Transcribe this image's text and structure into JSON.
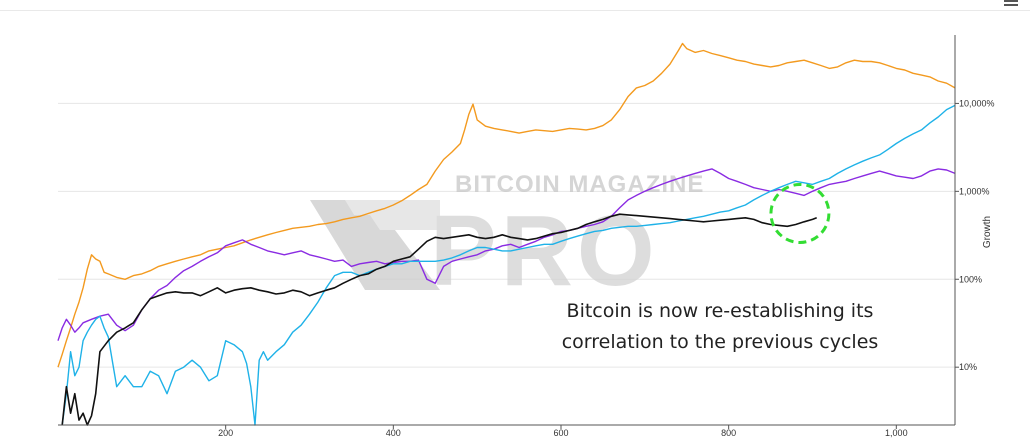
{
  "chart_data": {
    "type": "line",
    "title": "",
    "xlabel": "",
    "ylabel": "Growth",
    "yscale": "log",
    "xlim": [
      0,
      1070
    ],
    "ylim": [
      2.2,
      60000
    ],
    "x_ticks": [
      200,
      400,
      600,
      800,
      1000
    ],
    "x_tick_labels": [
      "200",
      "400",
      "600",
      "800",
      "1,000"
    ],
    "y_ticks": [
      10,
      100,
      1000,
      10000
    ],
    "y_tick_labels": [
      "10%",
      "100%",
      "1,000%",
      "10,000%"
    ],
    "grid": "horizontal",
    "legend": "none",
    "annotation": {
      "line1": "Bitcoin is now re-establishing its",
      "line2": "correlation to the previous cycles"
    },
    "highlight_circle": {
      "center_x": 885,
      "center_y": 560,
      "color": "#33dd33"
    },
    "watermark": {
      "top": "BITCOIN MAGAZINE",
      "main": "PRO"
    },
    "series": [
      {
        "color": "#f39a1f",
        "x": [
          0,
          5,
          10,
          15,
          20,
          25,
          30,
          35,
          40,
          45,
          50,
          55,
          60,
          70,
          80,
          90,
          100,
          110,
          120,
          130,
          140,
          150,
          160,
          170,
          180,
          190,
          200,
          210,
          220,
          230,
          240,
          250,
          260,
          270,
          280,
          290,
          300,
          310,
          320,
          330,
          340,
          350,
          360,
          370,
          380,
          390,
          400,
          410,
          420,
          430,
          440,
          450,
          460,
          470,
          480,
          485,
          490,
          495,
          500,
          510,
          520,
          530,
          540,
          550,
          560,
          570,
          580,
          590,
          600,
          610,
          620,
          630,
          640,
          650,
          660,
          670,
          680,
          690,
          700,
          710,
          720,
          730,
          740,
          745,
          750,
          760,
          770,
          780,
          790,
          800,
          810,
          820,
          830,
          840,
          850,
          860,
          870,
          880,
          890,
          900,
          910,
          920,
          930,
          940,
          950,
          960,
          970,
          980,
          990,
          1000,
          1010,
          1020,
          1030,
          1040,
          1050,
          1060,
          1070
        ],
        "y": [
          10,
          14,
          20,
          28,
          40,
          55,
          80,
          130,
          190,
          170,
          160,
          120,
          115,
          105,
          100,
          110,
          115,
          125,
          140,
          150,
          160,
          170,
          180,
          190,
          210,
          220,
          230,
          240,
          260,
          280,
          300,
          320,
          340,
          360,
          380,
          390,
          400,
          420,
          430,
          450,
          480,
          500,
          520,
          560,
          600,
          640,
          700,
          780,
          900,
          1050,
          1200,
          1700,
          2300,
          2800,
          3500,
          5000,
          7500,
          9800,
          6500,
          5500,
          5200,
          5000,
          4800,
          4600,
          4800,
          5000,
          4900,
          4800,
          5000,
          5200,
          5100,
          5000,
          5200,
          5600,
          6500,
          8500,
          12000,
          15000,
          16000,
          18000,
          22000,
          28000,
          40000,
          48000,
          42000,
          38000,
          40000,
          37000,
          35000,
          33000,
          31000,
          30000,
          28000,
          27000,
          26000,
          27000,
          29000,
          30000,
          31000,
          29000,
          27000,
          25000,
          26000,
          29000,
          31000,
          30000,
          30000,
          29000,
          27000,
          25000,
          24000,
          22000,
          21000,
          20000,
          18000,
          17000,
          15000
        ]
      },
      {
        "color": "#8a2be2",
        "x": [
          0,
          5,
          10,
          15,
          20,
          25,
          30,
          40,
          50,
          60,
          70,
          80,
          90,
          100,
          110,
          120,
          130,
          140,
          150,
          160,
          170,
          180,
          190,
          200,
          210,
          220,
          230,
          240,
          250,
          260,
          270,
          280,
          290,
          300,
          310,
          320,
          330,
          340,
          350,
          360,
          370,
          380,
          390,
          400,
          410,
          420,
          430,
          440,
          450,
          460,
          470,
          480,
          490,
          500,
          510,
          520,
          530,
          540,
          550,
          560,
          570,
          580,
          590,
          600,
          610,
          620,
          630,
          640,
          650,
          660,
          670,
          680,
          690,
          700,
          710,
          720,
          730,
          740,
          750,
          760,
          770,
          780,
          790,
          800,
          810,
          820,
          830,
          840,
          850,
          860,
          870,
          880,
          890,
          900,
          910,
          920,
          930,
          940,
          950,
          960,
          970,
          980,
          990,
          1000,
          1010,
          1020,
          1030,
          1040,
          1050,
          1060,
          1070
        ],
        "y": [
          20,
          28,
          35,
          30,
          25,
          28,
          32,
          35,
          38,
          40,
          30,
          26,
          30,
          45,
          60,
          75,
          85,
          105,
          125,
          140,
          160,
          180,
          200,
          240,
          260,
          280,
          250,
          230,
          210,
          200,
          190,
          200,
          210,
          190,
          180,
          170,
          160,
          165,
          140,
          150,
          155,
          160,
          150,
          155,
          160,
          160,
          165,
          100,
          90,
          140,
          160,
          170,
          180,
          190,
          210,
          220,
          240,
          250,
          230,
          250,
          270,
          300,
          320,
          350,
          360,
          380,
          400,
          420,
          450,
          520,
          650,
          800,
          900,
          1000,
          1100,
          1200,
          1300,
          1400,
          1500,
          1600,
          1700,
          1800,
          1600,
          1400,
          1300,
          1200,
          1100,
          1050,
          1000,
          1050,
          1000,
          950,
          900,
          1000,
          1100,
          1200,
          1250,
          1300,
          1400,
          1500,
          1600,
          1700,
          1600,
          1500,
          1450,
          1400,
          1500,
          1700,
          1800,
          1750,
          1600
        ]
      },
      {
        "color": "#1fb2e8",
        "x": [
          5,
          10,
          15,
          20,
          25,
          30,
          35,
          40,
          45,
          50,
          55,
          60,
          70,
          80,
          90,
          100,
          110,
          120,
          130,
          140,
          150,
          160,
          170,
          180,
          190,
          200,
          210,
          220,
          225,
          230,
          235,
          240,
          245,
          250,
          260,
          270,
          280,
          290,
          300,
          310,
          320,
          330,
          340,
          350,
          360,
          370,
          380,
          390,
          400,
          410,
          420,
          430,
          440,
          450,
          460,
          470,
          480,
          490,
          500,
          510,
          520,
          530,
          540,
          550,
          560,
          570,
          580,
          590,
          600,
          610,
          620,
          630,
          640,
          650,
          660,
          670,
          680,
          690,
          700,
          710,
          720,
          730,
          740,
          750,
          760,
          770,
          780,
          790,
          800,
          810,
          820,
          830,
          840,
          850,
          860,
          870,
          880,
          890,
          900,
          910,
          920,
          930,
          940,
          950,
          960,
          970,
          980,
          990,
          1000,
          1010,
          1020,
          1030,
          1040,
          1050,
          1060,
          1070
        ],
        "y": [
          2.2,
          5,
          15,
          8,
          10,
          20,
          25,
          30,
          35,
          38,
          28,
          22,
          6,
          8,
          6,
          6,
          9,
          8,
          5,
          9,
          10,
          12,
          10,
          7,
          8,
          20,
          18,
          15,
          11,
          6,
          2.2,
          12,
          15,
          12,
          15,
          18,
          25,
          30,
          40,
          55,
          80,
          110,
          120,
          120,
          110,
          120,
          130,
          140,
          150,
          150,
          160,
          160,
          160,
          160,
          165,
          175,
          190,
          210,
          230,
          230,
          220,
          210,
          210,
          220,
          230,
          240,
          250,
          250,
          270,
          290,
          310,
          330,
          350,
          360,
          380,
          390,
          400,
          400,
          410,
          420,
          430,
          440,
          460,
          480,
          500,
          520,
          550,
          580,
          600,
          650,
          700,
          800,
          900,
          1000,
          1100,
          1200,
          1300,
          1250,
          1200,
          1300,
          1400,
          1600,
          1800,
          2000,
          2200,
          2400,
          2600,
          3000,
          3500,
          4000,
          4500,
          5000,
          6000,
          7000,
          8500,
          9500
        ]
      },
      {
        "color": "#111111",
        "x": [
          5,
          10,
          15,
          20,
          25,
          30,
          35,
          40,
          45,
          50,
          60,
          70,
          80,
          90,
          100,
          110,
          120,
          130,
          140,
          150,
          160,
          170,
          180,
          190,
          200,
          210,
          220,
          230,
          240,
          250,
          260,
          270,
          280,
          290,
          300,
          310,
          320,
          330,
          340,
          350,
          360,
          370,
          380,
          390,
          400,
          410,
          420,
          430,
          440,
          450,
          460,
          470,
          480,
          490,
          500,
          510,
          520,
          530,
          540,
          550,
          560,
          570,
          580,
          590,
          600,
          610,
          620,
          630,
          640,
          650,
          660,
          670,
          680,
          690,
          700,
          710,
          720,
          730,
          740,
          750,
          760,
          770,
          780,
          790,
          800,
          810,
          820,
          830,
          840,
          850,
          860,
          870,
          880,
          890,
          900,
          905
        ],
        "y": [
          2.2,
          6,
          3,
          5,
          2.5,
          3,
          2.2,
          2.8,
          5,
          15,
          20,
          25,
          28,
          32,
          45,
          60,
          65,
          70,
          72,
          70,
          70,
          65,
          72,
          80,
          70,
          75,
          78,
          80,
          75,
          72,
          68,
          70,
          75,
          72,
          65,
          70,
          75,
          80,
          90,
          100,
          110,
          115,
          130,
          140,
          160,
          170,
          180,
          220,
          270,
          300,
          290,
          300,
          310,
          320,
          300,
          290,
          300,
          320,
          300,
          290,
          280,
          290,
          310,
          330,
          340,
          360,
          380,
          420,
          450,
          480,
          520,
          550,
          540,
          530,
          520,
          510,
          500,
          490,
          480,
          470,
          460,
          450,
          460,
          470,
          480,
          490,
          500,
          480,
          440,
          420,
          410,
          400,
          420,
          450,
          480,
          500
        ]
      }
    ]
  }
}
